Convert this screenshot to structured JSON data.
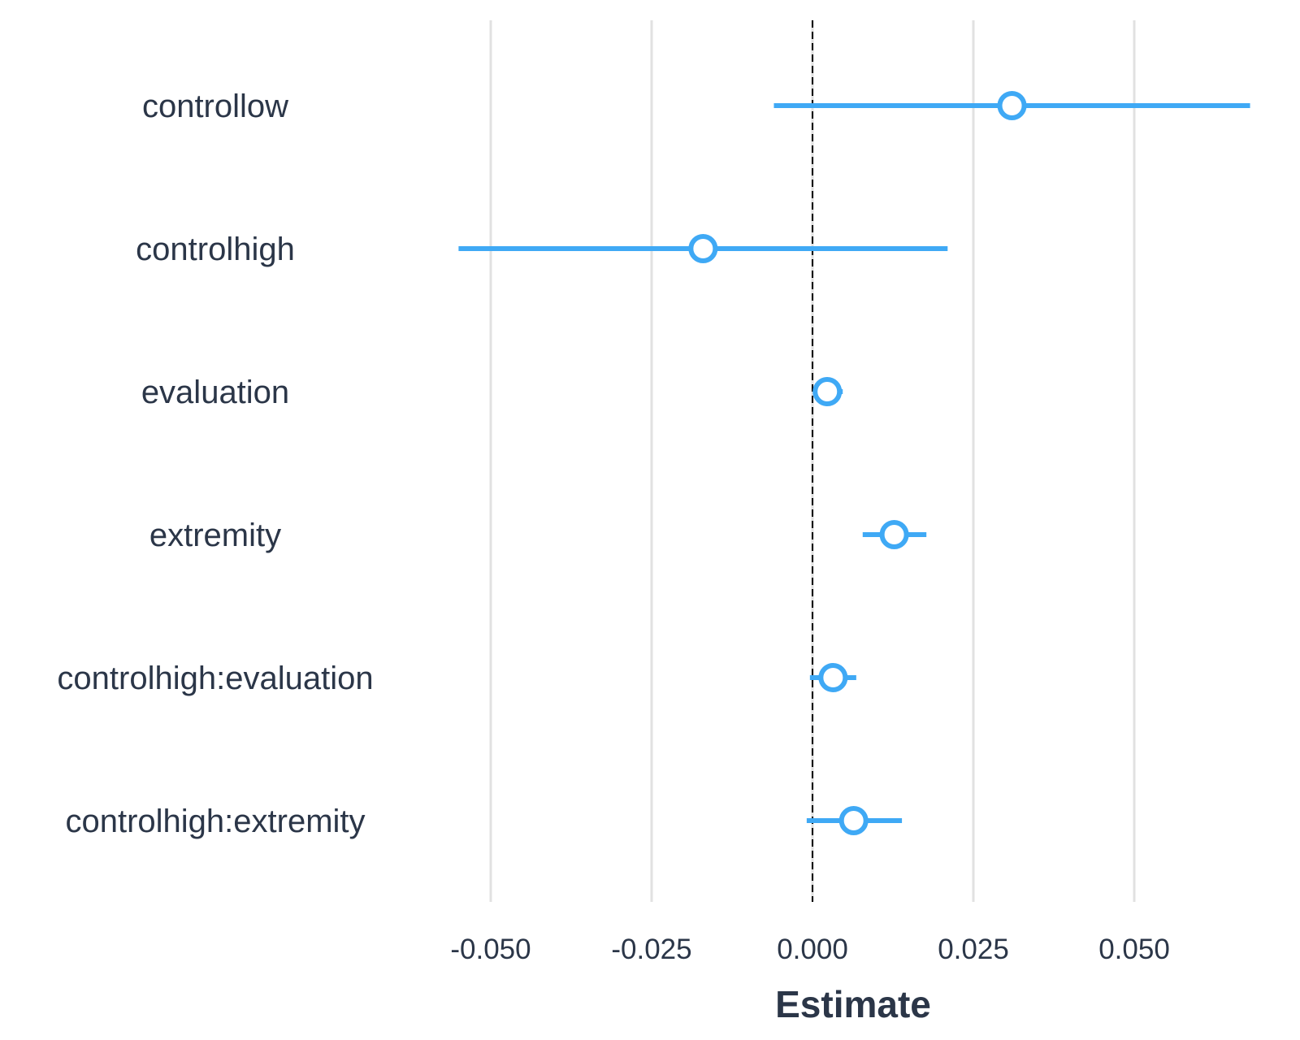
{
  "chart_data": {
    "type": "coefficient-plot",
    "xlabel": "Estimate",
    "xlim": [
      -0.0535,
      0.07
    ],
    "x_ticks": [
      -0.05,
      -0.025,
      0.0,
      0.025,
      0.05
    ],
    "x_tick_labels": [
      "-0.050",
      "-0.025",
      "0.000",
      "0.025",
      "0.050"
    ],
    "reference_line": 0.0,
    "grid": "vertical major",
    "legend": "none",
    "terms": [
      {
        "label": "controllow",
        "estimate": 0.031,
        "lower": -0.006,
        "upper": 0.068
      },
      {
        "label": "controlhigh",
        "estimate": -0.017,
        "lower": -0.055,
        "upper": 0.021
      },
      {
        "label": "evaluation",
        "estimate": 0.0023,
        "lower": 0.0002,
        "upper": 0.0047
      },
      {
        "label": "extremity",
        "estimate": 0.0127,
        "lower": 0.0078,
        "upper": 0.0177
      },
      {
        "label": "controlhigh:evaluation",
        "estimate": 0.0032,
        "lower": -0.0004,
        "upper": 0.0068
      },
      {
        "label": "controlhigh:extremity",
        "estimate": 0.0064,
        "lower": -0.0009,
        "upper": 0.0139
      }
    ]
  },
  "colors": {
    "point": "#3fa9f5",
    "text": "#2b3648",
    "grid": "#e1e1e1",
    "reference": "#000000",
    "background": "#ffffff"
  }
}
